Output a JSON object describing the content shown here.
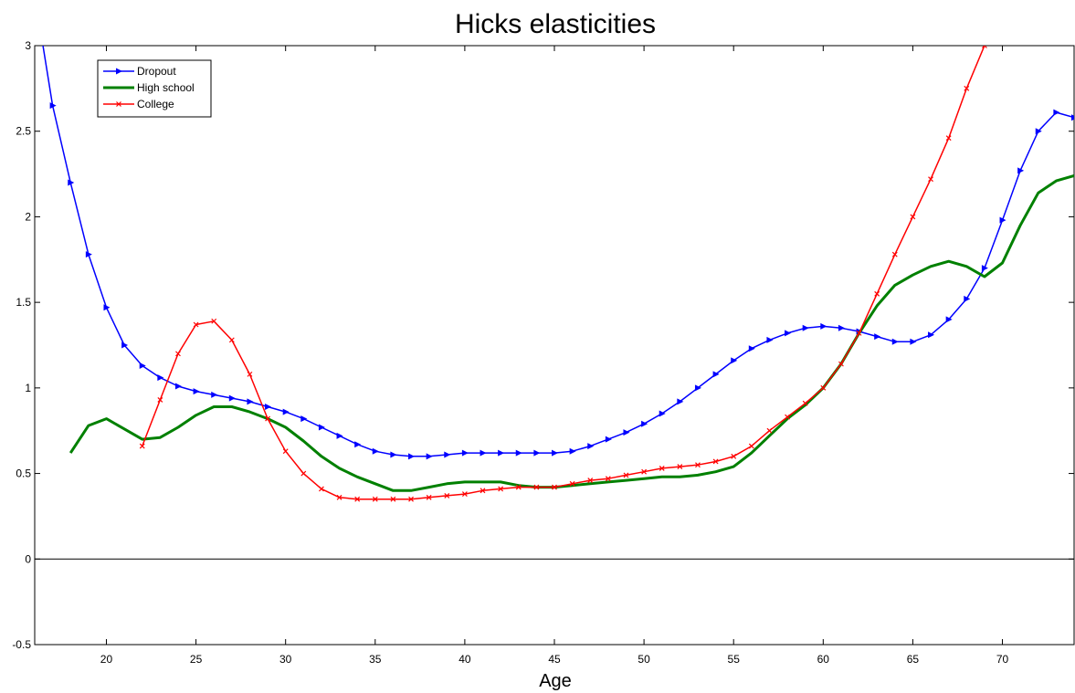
{
  "chart_data": {
    "type": "line",
    "title": "Hicks elasticities",
    "x_label": "Age",
    "x": [
      16,
      17,
      18,
      19,
      20,
      21,
      22,
      23,
      24,
      25,
      26,
      27,
      28,
      29,
      30,
      31,
      32,
      33,
      34,
      35,
      36,
      37,
      38,
      39,
      40,
      41,
      42,
      43,
      44,
      45,
      46,
      47,
      48,
      49,
      50,
      51,
      52,
      53,
      54,
      55,
      56,
      57,
      58,
      59,
      60,
      61,
      62,
      63,
      64,
      65,
      66,
      67,
      68,
      69,
      70,
      71,
      72,
      73,
      74
    ],
    "series": [
      {
        "name": "Dropout",
        "color": "#0000ff",
        "marker": "triangle-right",
        "values": [
          3.3,
          2.65,
          2.2,
          1.78,
          1.47,
          1.25,
          1.13,
          1.06,
          1.01,
          0.98,
          0.96,
          0.94,
          0.92,
          0.89,
          0.86,
          0.82,
          0.77,
          0.72,
          0.67,
          0.63,
          0.61,
          0.6,
          0.6,
          0.61,
          0.62,
          0.62,
          0.62,
          0.62,
          0.62,
          0.62,
          0.63,
          0.66,
          0.7,
          0.74,
          0.79,
          0.85,
          0.92,
          1.0,
          1.08,
          1.16,
          1.23,
          1.28,
          1.32,
          1.35,
          1.36,
          1.35,
          1.33,
          1.3,
          1.27,
          1.27,
          1.31,
          1.4,
          1.52,
          1.7,
          1.98,
          2.27,
          2.5,
          2.61,
          2.58
        ]
      },
      {
        "name": "High school",
        "color": "#008000",
        "marker": "none",
        "values": [
          null,
          null,
          0.62,
          0.78,
          0.82,
          0.76,
          0.7,
          0.71,
          0.77,
          0.84,
          0.89,
          0.89,
          0.86,
          0.82,
          0.77,
          0.69,
          0.6,
          0.53,
          0.48,
          0.44,
          0.4,
          0.4,
          0.42,
          0.44,
          0.45,
          0.45,
          0.45,
          0.43,
          0.42,
          0.42,
          0.43,
          0.44,
          0.45,
          0.46,
          0.47,
          0.48,
          0.48,
          0.49,
          0.51,
          0.54,
          0.62,
          0.72,
          0.82,
          0.9,
          1.0,
          1.14,
          1.32,
          1.48,
          1.6,
          1.66,
          1.71,
          1.74,
          1.71,
          1.65,
          1.73,
          1.95,
          2.14,
          2.21,
          2.24
        ]
      },
      {
        "name": "College",
        "color": "#ff0000",
        "marker": "x",
        "values": [
          null,
          null,
          null,
          null,
          null,
          null,
          0.66,
          0.93,
          1.2,
          1.37,
          1.39,
          1.28,
          1.08,
          0.82,
          0.63,
          0.5,
          0.41,
          0.36,
          0.35,
          0.35,
          0.35,
          0.35,
          0.36,
          0.37,
          0.38,
          0.4,
          0.41,
          0.42,
          0.42,
          0.42,
          0.44,
          0.46,
          0.47,
          0.49,
          0.51,
          0.53,
          0.54,
          0.55,
          0.57,
          0.6,
          0.66,
          0.75,
          0.83,
          0.91,
          1.0,
          1.14,
          1.32,
          1.55,
          1.78,
          2.0,
          2.22,
          2.46,
          2.75,
          3.0,
          3.25,
          null,
          null,
          null,
          null
        ]
      }
    ],
    "xlim": [
      16,
      74
    ],
    "ylim": [
      -0.5,
      3
    ],
    "xticks": [
      20,
      25,
      30,
      35,
      40,
      45,
      50,
      55,
      60,
      65,
      70
    ],
    "yticks": [
      -0.5,
      0,
      0.5,
      1,
      1.5,
      2,
      2.5,
      3
    ],
    "zero_line": true,
    "legend": "upper left"
  }
}
